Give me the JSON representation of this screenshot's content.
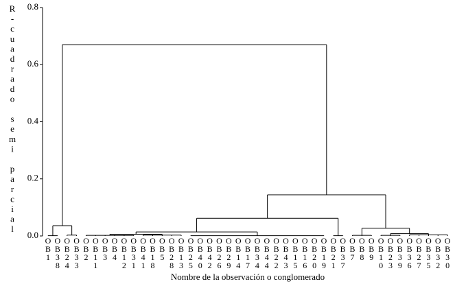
{
  "chart_data": {
    "type": "dendrogram",
    "y_label": "R-cuadrado semi parcial",
    "x_label": "Nombre de la observación o conglomerado",
    "ylim": [
      0,
      0.8
    ],
    "yticks": [
      {
        "value": 0,
        "label": "0.0"
      },
      0.2,
      0.4,
      0.6,
      0.8
    ],
    "color": "#000000",
    "tree": {
      "height": 0.67,
      "children": [
        {
          "height": 0.036,
          "children": [
            {
              "height": 0.001,
              "children": [
                "OB1",
                "OB38"
              ]
            },
            {
              "height": 0.003,
              "children": [
                "OB24",
                "OB33"
              ]
            }
          ]
        },
        {
          "height": 0.144,
          "children": [
            {
              "height": 0.062,
              "children": [
                {
                  "height": 0.014,
                  "children": [
                    {
                      "height": 0.006,
                      "children": [
                        {
                          "height": 0.002,
                          "children": [
                            "OB2",
                            "OB11",
                            "OB3",
                            "OB4",
                            "OB12",
                            "OB31"
                          ]
                        },
                        {
                          "height": 0.003,
                          "children": [
                            "OB41",
                            "OB18",
                            "OB5",
                            "OB28",
                            "OB13"
                          ]
                        }
                      ]
                    },
                    {
                      "height": 0.001,
                      "children": [
                        "OB25",
                        "OB40",
                        "OB42",
                        "OB26",
                        "OB29",
                        "OB14",
                        "OB17",
                        "OB34",
                        "OB44",
                        "OB22",
                        "OB43",
                        "OB15",
                        "OB16",
                        "OB20",
                        "OB19"
                      ]
                    }
                  ]
                },
                {
                  "height": 0.001,
                  "children": [
                    "OB21",
                    "OB37"
                  ]
                }
              ]
            },
            {
              "height": 0.027,
              "children": [
                {
                  "height": 0.002,
                  "children": [
                    "OB7",
                    "OB8",
                    "OB9"
                  ]
                },
                {
                  "height": 0.008,
                  "children": [
                    {
                      "height": 0.002,
                      "children": [
                        "OB10",
                        "OB23",
                        "OB39"
                      ]
                    },
                    {
                      "height": 0.004,
                      "children": [
                        "OB36",
                        "OB27",
                        "OB35",
                        "OB32",
                        "OB30"
                      ]
                    }
                  ]
                }
              ]
            }
          ]
        }
      ]
    }
  }
}
